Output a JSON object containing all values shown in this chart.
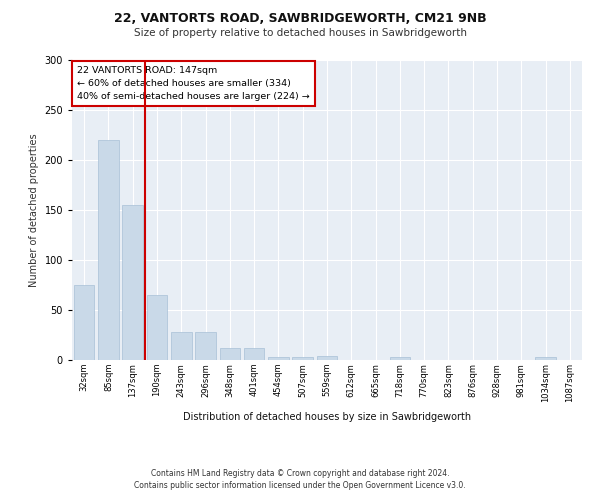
{
  "title1": "22, VANTORTS ROAD, SAWBRIDGEWORTH, CM21 9NB",
  "title2": "Size of property relative to detached houses in Sawbridgeworth",
  "xlabel": "Distribution of detached houses by size in Sawbridgeworth",
  "ylabel": "Number of detached properties",
  "categories": [
    "32sqm",
    "85sqm",
    "137sqm",
    "190sqm",
    "243sqm",
    "296sqm",
    "348sqm",
    "401sqm",
    "454sqm",
    "507sqm",
    "559sqm",
    "612sqm",
    "665sqm",
    "718sqm",
    "770sqm",
    "823sqm",
    "876sqm",
    "928sqm",
    "981sqm",
    "1034sqm",
    "1087sqm"
  ],
  "values": [
    75,
    220,
    155,
    65,
    28,
    28,
    12,
    12,
    3,
    3,
    4,
    0,
    0,
    3,
    0,
    0,
    0,
    0,
    0,
    3,
    0
  ],
  "bar_color": "#c9d9e8",
  "bar_edge_color": "#a8c0d6",
  "red_line_index": 2.5,
  "red_line_color": "#cc0000",
  "annotation_text": "22 VANTORTS ROAD: 147sqm\n← 60% of detached houses are smaller (334)\n40% of semi-detached houses are larger (224) →",
  "annotation_box_color": "#ffffff",
  "annotation_box_edge_color": "#cc0000",
  "ylim": [
    0,
    300
  ],
  "yticks": [
    0,
    50,
    100,
    150,
    200,
    250,
    300
  ],
  "footer": "Contains HM Land Registry data © Crown copyright and database right 2024.\nContains public sector information licensed under the Open Government Licence v3.0.",
  "plot_background": "#e8eef5",
  "fig_background": "#ffffff"
}
